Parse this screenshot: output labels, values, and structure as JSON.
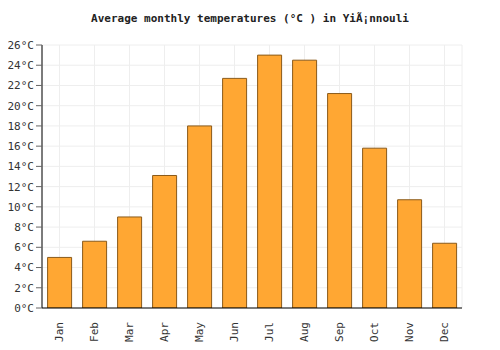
{
  "chart_data": {
    "type": "bar",
    "title": "Average monthly temperatures (°C ) in YiÃ¡nnouli",
    "categories": [
      "Jan",
      "Feb",
      "Mar",
      "Apr",
      "May",
      "Jun",
      "Jul",
      "Aug",
      "Sep",
      "Oct",
      "Nov",
      "Dec"
    ],
    "values": [
      5,
      6.6,
      9,
      13.1,
      18,
      22.7,
      25,
      24.5,
      21.2,
      15.8,
      10.7,
      6.4
    ],
    "color": "#ffa733",
    "ylim": [
      0,
      26
    ],
    "yticks": [
      {
        "value": 0,
        "label": "0°C"
      },
      {
        "value": 2,
        "label": "2°C"
      },
      {
        "value": 4,
        "label": "4°C"
      },
      {
        "value": 6,
        "label": "6°C"
      },
      {
        "value": 8,
        "label": "8°C"
      },
      {
        "value": 10,
        "label": "10°C"
      },
      {
        "value": 12,
        "label": "12°C"
      },
      {
        "value": 14,
        "label": "14°C"
      },
      {
        "value": 16,
        "label": "16°C"
      },
      {
        "value": 18,
        "label": "18°C"
      },
      {
        "value": 20,
        "label": "20°C"
      },
      {
        "value": 22,
        "label": "22°C"
      },
      {
        "value": 24,
        "label": "24°C"
      },
      {
        "value": 26,
        "label": "26°C"
      }
    ],
    "grid": true
  }
}
